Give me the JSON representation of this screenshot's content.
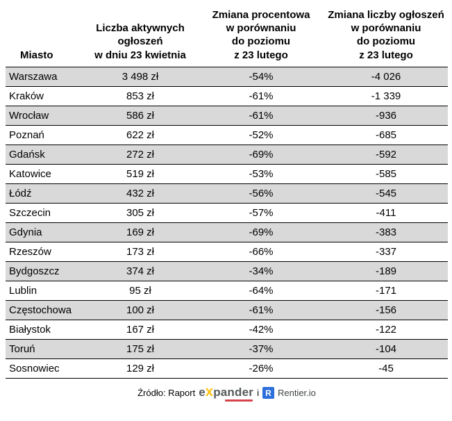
{
  "chart_data": {
    "type": "table",
    "columns": [
      "Miasto",
      "Liczba aktywnych\nogłoszeń\nw dniu 23 kwietnia",
      "Zmiana procentowa\nw porównaniu\ndo poziomu\nz 23 lutego",
      "Zmiana liczby ogłoszeń\nw porównaniu\ndo poziomu\nz 23 lutego"
    ],
    "rows": [
      [
        "Warszawa",
        "3 498 zł",
        "-54%",
        "-4 026"
      ],
      [
        "Kraków",
        "853 zł",
        "-61%",
        "-1 339"
      ],
      [
        "Wrocław",
        "586 zł",
        "-61%",
        "-936"
      ],
      [
        "Poznań",
        "622 zł",
        "-52%",
        "-685"
      ],
      [
        "Gdańsk",
        "272 zł",
        "-69%",
        "-592"
      ],
      [
        "Katowice",
        "519 zł",
        "-53%",
        "-585"
      ],
      [
        "Łódź",
        "432 zł",
        "-56%",
        "-545"
      ],
      [
        "Szczecin",
        "305 zł",
        "-57%",
        "-411"
      ],
      [
        "Gdynia",
        "169 zł",
        "-69%",
        "-383"
      ],
      [
        "Rzeszów",
        "173 zł",
        "-66%",
        "-337"
      ],
      [
        "Bydgoszcz",
        "374 zł",
        "-34%",
        "-189"
      ],
      [
        "Lublin",
        "95 zł",
        "-64%",
        "-171"
      ],
      [
        "Częstochowa",
        "100 zł",
        "-61%",
        "-156"
      ],
      [
        "Białystok",
        "167 zł",
        "-42%",
        "-122"
      ],
      [
        "Toruń",
        "175 zł",
        "-37%",
        "-104"
      ],
      [
        "Sosnowiec",
        "129 zł",
        "-26%",
        "-45"
      ]
    ],
    "layout": {
      "striped_rows": true,
      "stripe_color": "#d9d9d9",
      "border_color": "#000000"
    }
  },
  "footer": {
    "source_prefix": "Źródło: Raport",
    "expander_e": "e",
    "expander_x": "x",
    "expander_rest": "pander",
    "and_text": "i",
    "rentier_icon_letter": "R",
    "rentier_text": "Rentier.io"
  },
  "colors": {
    "expander_yellow": "#ffc20e",
    "expander_gray": "#565a5c",
    "rentier_blue": "#2a6fdb",
    "row_stripe": "#d9d9d9"
  }
}
